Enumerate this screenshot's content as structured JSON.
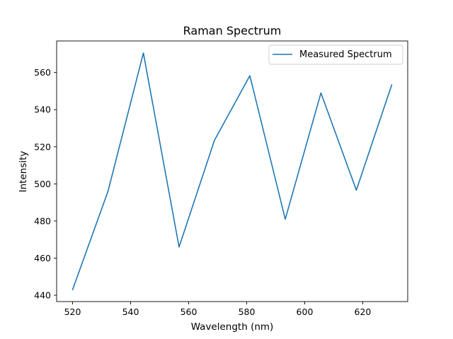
{
  "chart_data": {
    "type": "line",
    "title": "Raman Spectrum",
    "xlabel": "Wavelength (nm)",
    "ylabel": "Intensity",
    "xlim": [
      514.5,
      635.5
    ],
    "ylim": [
      436.6,
      577.0
    ],
    "xticks": [
      520,
      540,
      560,
      580,
      600,
      620
    ],
    "yticks": [
      440,
      460,
      480,
      500,
      520,
      540,
      560
    ],
    "grid": false,
    "legend_position": "top-right",
    "series": [
      {
        "name": "Measured Spectrum",
        "color": "#1f77b4",
        "x": [
          520,
          532.2,
          544.4,
          556.7,
          568.9,
          581.1,
          593.3,
          605.6,
          617.8,
          630
        ],
        "y": [
          443.0,
          496.0,
          570.5,
          466.0,
          523.5,
          558.3,
          481.0,
          549.0,
          496.6,
          553.4
        ]
      }
    ]
  }
}
